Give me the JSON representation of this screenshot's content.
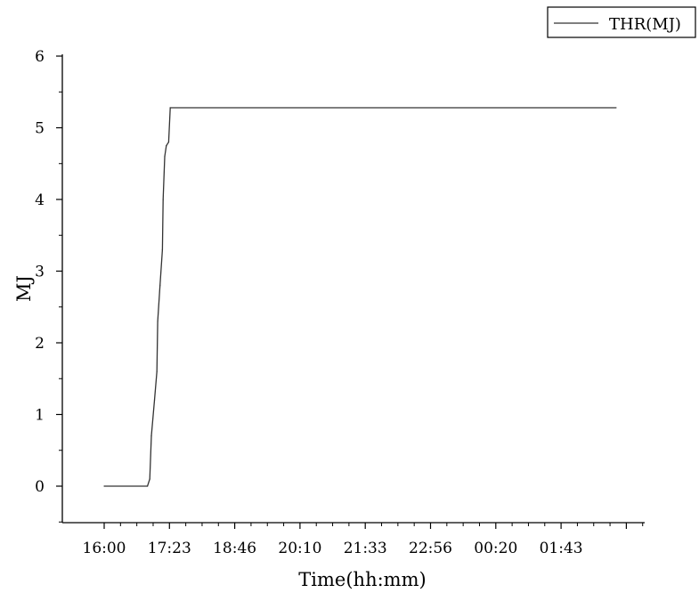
{
  "chart_data": {
    "type": "line",
    "title": "",
    "xlabel": "Time(hh:mm)",
    "ylabel": "MJ",
    "legend": {
      "placement": "top-right",
      "entries": [
        "THR(MJ)"
      ]
    },
    "grid": false,
    "x_unit": "hh:mm",
    "xticks": [
      "16:00",
      "17:23",
      "18:46",
      "20:10",
      "21:33",
      "22:56",
      "00:20",
      "01:43"
    ],
    "yticks": [
      "0",
      "1",
      "2",
      "3",
      "4",
      "5",
      "6"
    ],
    "xlim": [
      "15:32",
      "04:03"
    ],
    "ylim": [
      -0.5,
      6
    ],
    "series": [
      {
        "name": "THR(MJ)",
        "color": "#333333",
        "points": [
          {
            "x": "16:00",
            "y": 0.0
          },
          {
            "x": "16:55",
            "y": 0.0
          },
          {
            "x": "16:58",
            "y": 0.1
          },
          {
            "x": "17:00",
            "y": 0.7
          },
          {
            "x": "17:04",
            "y": 1.2
          },
          {
            "x": "17:07",
            "y": 1.6
          },
          {
            "x": "17:08",
            "y": 2.3
          },
          {
            "x": "17:11",
            "y": 2.8
          },
          {
            "x": "17:14",
            "y": 3.3
          },
          {
            "x": "17:15",
            "y": 4.0
          },
          {
            "x": "17:17",
            "y": 4.6
          },
          {
            "x": "17:19",
            "y": 4.75
          },
          {
            "x": "17:22",
            "y": 4.8
          },
          {
            "x": "17:24",
            "y": 5.28
          },
          {
            "x": "02:51",
            "y": 5.28
          }
        ]
      }
    ]
  }
}
